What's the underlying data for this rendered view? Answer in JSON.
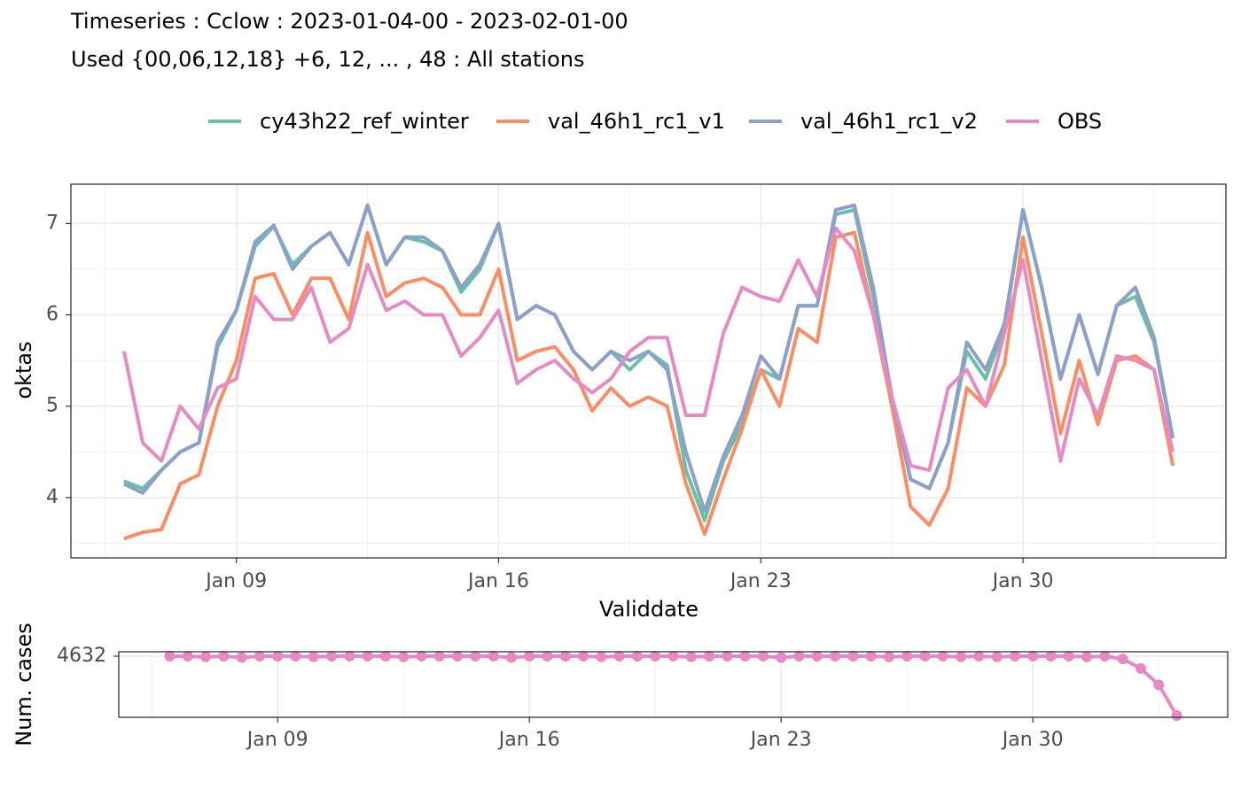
{
  "chart_data": [
    {
      "type": "line",
      "title": "Timeseries : Cclow : 2023-01-04-00 - 2023-02-01-00",
      "subtitle": "Used {00,06,12,18} +6, 12, ... , 48 : All stations",
      "x_label": "Validdate",
      "y_label": "oktas",
      "x": [
        "2023-01-06-00",
        "2023-01-06-12",
        "2023-01-07-00",
        "2023-01-07-12",
        "2023-01-08-00",
        "2023-01-08-12",
        "2023-01-09-00",
        "2023-01-09-12",
        "2023-01-10-00",
        "2023-01-10-12",
        "2023-01-11-00",
        "2023-01-11-12",
        "2023-01-12-00",
        "2023-01-12-12",
        "2023-01-13-00",
        "2023-01-13-12",
        "2023-01-14-00",
        "2023-01-14-12",
        "2023-01-15-00",
        "2023-01-15-12",
        "2023-01-16-00",
        "2023-01-16-12",
        "2023-01-17-00",
        "2023-01-17-12",
        "2023-01-18-00",
        "2023-01-18-12",
        "2023-01-19-00",
        "2023-01-19-12",
        "2023-01-20-00",
        "2023-01-20-12",
        "2023-01-21-00",
        "2023-01-21-12",
        "2023-01-22-00",
        "2023-01-22-12",
        "2023-01-23-00",
        "2023-01-23-12",
        "2023-01-24-00",
        "2023-01-24-12",
        "2023-01-25-00",
        "2023-01-25-12",
        "2023-01-26-00",
        "2023-01-26-12",
        "2023-01-27-00",
        "2023-01-27-12",
        "2023-01-28-00",
        "2023-01-28-12",
        "2023-01-29-00",
        "2023-01-29-12",
        "2023-01-30-00",
        "2023-01-30-12",
        "2023-01-31-00",
        "2023-01-31-12",
        "2023-02-01-00",
        "2023-02-01-12",
        "2023-02-02-00",
        "2023-02-02-12",
        "2023-02-03-00"
      ],
      "series": [
        {
          "name": "cy43h22_ref_winter",
          "color": "#66c2a5",
          "values": [
            4.18,
            4.1,
            4.3,
            4.5,
            4.6,
            5.65,
            6.05,
            6.75,
            6.97,
            6.55,
            6.75,
            6.9,
            6.55,
            7.2,
            6.55,
            6.85,
            6.8,
            6.7,
            6.25,
            6.5,
            7.0,
            5.95,
            6.1,
            6.0,
            5.6,
            5.4,
            5.6,
            5.4,
            5.6,
            5.45,
            4.3,
            3.75,
            4.4,
            4.8,
            5.4,
            5.3,
            6.1,
            6.1,
            7.1,
            7.15,
            6.2,
            5.1,
            4.2,
            4.1,
            4.6,
            5.6,
            5.3,
            5.85,
            7.15,
            6.3,
            5.3,
            6.0,
            5.35,
            6.1,
            6.2,
            5.7,
            4.65
          ]
        },
        {
          "name": "val_46h1_rc1_v1",
          "color": "#fc8d62",
          "values": [
            3.55,
            3.62,
            3.65,
            4.15,
            4.25,
            5.0,
            5.5,
            6.4,
            6.45,
            6.0,
            6.4,
            6.4,
            5.95,
            6.9,
            6.2,
            6.35,
            6.4,
            6.3,
            6.0,
            6.0,
            6.5,
            5.5,
            5.6,
            5.65,
            5.4,
            4.95,
            5.2,
            5.0,
            5.1,
            5.0,
            4.15,
            3.6,
            4.2,
            4.75,
            5.4,
            5.0,
            5.85,
            5.7,
            6.85,
            6.9,
            6.0,
            5.0,
            3.9,
            3.7,
            4.1,
            5.2,
            5.0,
            5.45,
            6.85,
            5.8,
            4.7,
            5.5,
            4.8,
            5.5,
            5.55,
            5.4,
            4.35
          ]
        },
        {
          "name": "val_46h1_rc1_v2",
          "color": "#8da0cb",
          "values": [
            4.15,
            4.05,
            4.3,
            4.5,
            4.6,
            5.7,
            6.05,
            6.8,
            6.98,
            6.5,
            6.75,
            6.9,
            6.55,
            7.2,
            6.55,
            6.85,
            6.85,
            6.7,
            6.3,
            6.55,
            7.0,
            5.95,
            6.1,
            6.0,
            5.6,
            5.4,
            5.6,
            5.5,
            5.6,
            5.4,
            4.5,
            3.85,
            4.45,
            4.9,
            5.55,
            5.3,
            6.1,
            6.1,
            7.15,
            7.2,
            6.3,
            5.1,
            4.2,
            4.1,
            4.6,
            5.7,
            5.4,
            5.9,
            7.15,
            6.3,
            5.3,
            6.0,
            5.35,
            6.1,
            6.3,
            5.75,
            4.65
          ]
        },
        {
          "name": "OBS",
          "color": "#e78ac3",
          "values": [
            5.6,
            4.6,
            4.4,
            5.0,
            4.75,
            5.2,
            5.3,
            6.2,
            5.95,
            5.95,
            6.3,
            5.7,
            5.85,
            6.55,
            6.05,
            6.15,
            6.0,
            6.0,
            5.55,
            5.75,
            6.05,
            5.25,
            5.4,
            5.5,
            5.3,
            5.15,
            5.3,
            5.6,
            5.75,
            5.75,
            4.9,
            4.9,
            5.8,
            6.3,
            6.2,
            6.15,
            6.6,
            6.2,
            6.95,
            6.7,
            6.0,
            5.1,
            4.35,
            4.3,
            5.2,
            5.4,
            5.0,
            5.8,
            6.6,
            5.5,
            4.4,
            5.3,
            4.9,
            5.55,
            5.5,
            5.4,
            4.5
          ]
        }
      ],
      "xlim": [
        "2023-01-04-14",
        "2023-02-04-10"
      ],
      "xticks": [
        {
          "value": "2023-01-09-00",
          "label": "Jan 09"
        },
        {
          "value": "2023-01-16-00",
          "label": "Jan 16"
        },
        {
          "value": "2023-01-23-00",
          "label": "Jan 23"
        },
        {
          "value": "2023-01-30-00",
          "label": "Jan 30"
        }
      ],
      "ylim": [
        3.34,
        7.43
      ],
      "yticks": [
        4,
        5,
        6,
        7
      ],
      "grid": true,
      "legend": "top"
    },
    {
      "type": "scatter",
      "y_label": "Num. cases",
      "color": "#e78ac3",
      "x": [
        "2023-01-06-00",
        "2023-01-06-12",
        "2023-01-07-00",
        "2023-01-07-12",
        "2023-01-08-00",
        "2023-01-08-12",
        "2023-01-09-00",
        "2023-01-09-12",
        "2023-01-10-00",
        "2023-01-10-12",
        "2023-01-11-00",
        "2023-01-11-12",
        "2023-01-12-00",
        "2023-01-12-12",
        "2023-01-13-00",
        "2023-01-13-12",
        "2023-01-14-00",
        "2023-01-14-12",
        "2023-01-15-00",
        "2023-01-15-12",
        "2023-01-16-00",
        "2023-01-16-12",
        "2023-01-17-00",
        "2023-01-17-12",
        "2023-01-18-00",
        "2023-01-18-12",
        "2023-01-19-00",
        "2023-01-19-12",
        "2023-01-20-00",
        "2023-01-20-12",
        "2023-01-21-00",
        "2023-01-21-12",
        "2023-01-22-00",
        "2023-01-22-12",
        "2023-01-23-00",
        "2023-01-23-12",
        "2023-01-24-00",
        "2023-01-24-12",
        "2023-01-25-00",
        "2023-01-25-12",
        "2023-01-26-00",
        "2023-01-26-12",
        "2023-01-27-00",
        "2023-01-27-12",
        "2023-01-28-00",
        "2023-01-28-12",
        "2023-01-29-00",
        "2023-01-29-12",
        "2023-01-30-00",
        "2023-01-30-12",
        "2023-01-31-00",
        "2023-01-31-12",
        "2023-02-01-00",
        "2023-02-01-12",
        "2023-02-02-00",
        "2023-02-02-12",
        "2023-02-03-00"
      ],
      "values": [
        4632,
        4632,
        4631,
        4632,
        4630,
        4632,
        4632,
        4632,
        4631,
        4632,
        4632,
        4632,
        4632,
        4631,
        4632,
        4632,
        4632,
        4632,
        4632,
        4630,
        4632,
        4632,
        4632,
        4632,
        4631,
        4632,
        4632,
        4632,
        4632,
        4631,
        4632,
        4632,
        4632,
        4632,
        4630,
        4632,
        4632,
        4632,
        4632,
        4632,
        4631,
        4632,
        4632,
        4632,
        4631,
        4632,
        4631,
        4632,
        4632,
        4632,
        4632,
        4631,
        4632,
        4628,
        4614,
        4590,
        4545
      ],
      "xlim": [
        "2023-01-04-14",
        "2023-02-04-10"
      ],
      "xticks": [
        {
          "value": "2023-01-09-00",
          "label": "Jan 09"
        },
        {
          "value": "2023-01-16-00",
          "label": "Jan 16"
        },
        {
          "value": "2023-01-23-00",
          "label": "Jan 23"
        },
        {
          "value": "2023-01-30-00",
          "label": "Jan 30"
        }
      ],
      "ylim": [
        4542.4,
        4638.5
      ],
      "yticks": [
        4632
      ],
      "grid": true
    }
  ]
}
